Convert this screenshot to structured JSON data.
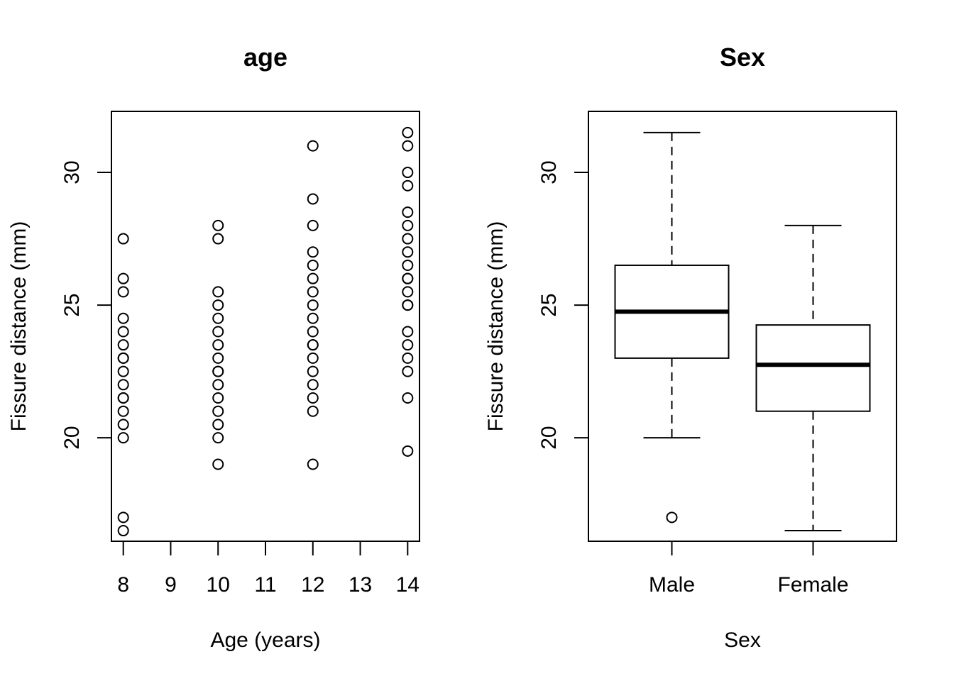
{
  "chart_data": [
    {
      "type": "scatter",
      "title": "age",
      "xlabel": "Age (years)",
      "ylabel": "Fissure distance (mm)",
      "xlim": [
        7.75,
        14.25
      ],
      "ylim": [
        16.1,
        32.3
      ],
      "xticks": [
        "8",
        "9",
        "10",
        "11",
        "12",
        "13",
        "14"
      ],
      "yticks": [
        "20",
        "25",
        "30"
      ],
      "marker": "open-circle",
      "points": {
        "x": [
          8,
          8,
          8,
          8,
          8,
          8,
          8,
          8,
          8,
          8,
          8,
          8,
          8,
          8,
          8,
          8,
          8,
          10,
          10,
          10,
          10,
          10,
          10,
          10,
          10,
          10,
          10,
          10,
          10,
          10,
          10,
          10,
          10,
          12,
          12,
          12,
          12,
          12,
          12,
          12,
          12,
          12,
          12,
          12,
          12,
          12,
          12,
          12,
          12,
          12,
          12,
          14,
          14,
          14,
          14,
          14,
          14,
          14,
          14,
          14,
          14,
          14,
          14,
          14,
          14,
          14,
          14,
          14,
          14,
          14,
          14
        ],
        "y": [
          16.5,
          17,
          20,
          20.5,
          21,
          21.5,
          22,
          22.5,
          23,
          23.5,
          24,
          24.5,
          25.5,
          26,
          27.5,
          23,
          21.5,
          19,
          20,
          20.5,
          21,
          21.5,
          22,
          22.5,
          23,
          23.5,
          24,
          24.5,
          25,
          25.5,
          27.5,
          28,
          22.5,
          19,
          21,
          21.5,
          22,
          22.5,
          23,
          23.5,
          24,
          24.5,
          25,
          25.5,
          26,
          26.5,
          27,
          28,
          29,
          31,
          23.5,
          19.5,
          21.5,
          22.5,
          23,
          23.5,
          24,
          25,
          25.5,
          26,
          26.5,
          27,
          27.5,
          28,
          28.5,
          29.5,
          30,
          31,
          31.5,
          26,
          25
        ]
      }
    },
    {
      "type": "box",
      "title": "Sex",
      "xlabel": "Sex",
      "ylabel": "Fissure distance (mm)",
      "ylim": [
        16.1,
        32.3
      ],
      "yticks": [
        "20",
        "25",
        "30"
      ],
      "categories": [
        "Male",
        "Female"
      ],
      "boxes": [
        {
          "category": "Male",
          "lower_whisker": 20,
          "q1": 23,
          "median": 24.75,
          "q3": 26.5,
          "upper_whisker": 31.5,
          "outliers": [
            17
          ]
        },
        {
          "category": "Female",
          "lower_whisker": 16.5,
          "q1": 21,
          "median": 22.75,
          "q3": 24.25,
          "upper_whisker": 28,
          "outliers": []
        }
      ]
    }
  ]
}
